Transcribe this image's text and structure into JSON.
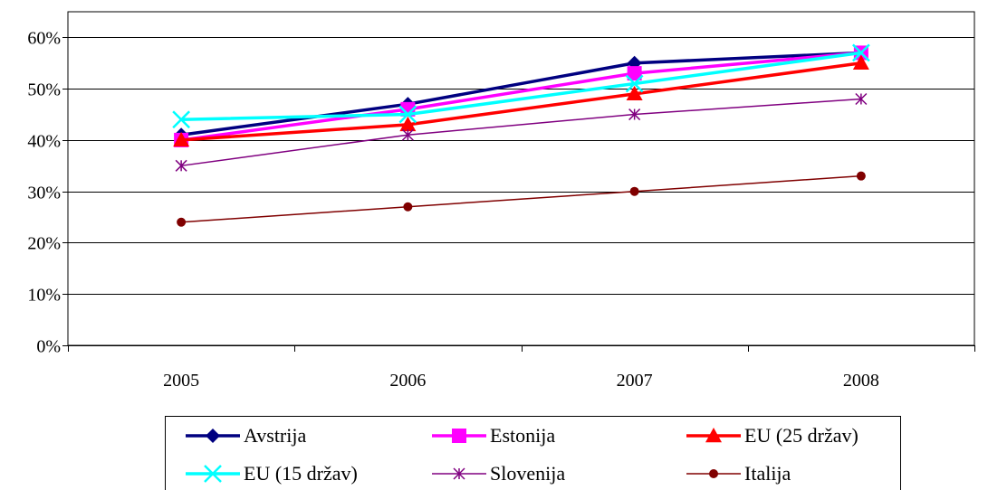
{
  "chart_data": {
    "type": "line",
    "categories": [
      "2005",
      "2006",
      "2007",
      "2008"
    ],
    "ylim": [
      0,
      60
    ],
    "yticks": [
      "0%",
      "10%",
      "20%",
      "30%",
      "40%",
      "50%",
      "60%"
    ],
    "ytick_values": [
      0,
      10,
      20,
      30,
      40,
      50,
      60
    ],
    "grid": "horizontal",
    "legend_position": "bottom",
    "series": [
      {
        "name": "Avstrija",
        "values": [
          41,
          47,
          55,
          57
        ],
        "color": "#000080",
        "marker": "diamond",
        "width": 3.5
      },
      {
        "name": "Estonija",
        "values": [
          40,
          46,
          53,
          57
        ],
        "color": "#FF00FF",
        "marker": "square",
        "width": 3.5
      },
      {
        "name": "EU (25 držav)",
        "values": [
          40,
          43,
          49,
          55
        ],
        "color": "#FF0000",
        "marker": "triangle",
        "width": 3.5
      },
      {
        "name": "EU (15 držav)",
        "values": [
          44,
          45,
          51,
          57
        ],
        "color": "#00FFFF",
        "marker": "x",
        "width": 3.5
      },
      {
        "name": "Slovenija",
        "values": [
          35,
          41,
          45,
          48
        ],
        "color": "#800080",
        "marker": "asterisk",
        "width": 1.5
      },
      {
        "name": "Italija",
        "values": [
          24,
          27,
          30,
          33
        ],
        "color": "#800000",
        "marker": "circle",
        "width": 1.5
      }
    ]
  }
}
